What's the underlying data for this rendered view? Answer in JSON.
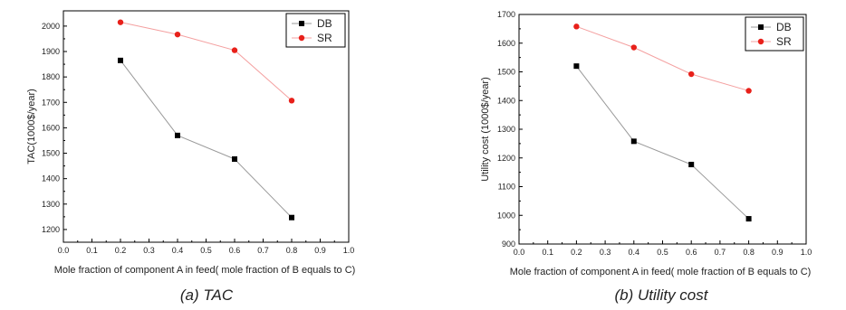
{
  "chart_data": [
    {
      "type": "line",
      "caption": "(a) TAC",
      "xlabel": "Mole fraction of component A in feed( mole fraction of B equals to C)",
      "ylabel": "TAC(1000$/year)",
      "xlim": [
        0.0,
        1.0
      ],
      "ylim": [
        1150,
        2060
      ],
      "xticks": [
        0.0,
        0.1,
        0.2,
        0.3,
        0.4,
        0.5,
        0.6,
        0.7,
        0.8,
        0.9,
        1.0
      ],
      "yticks": [
        1200,
        1300,
        1400,
        1500,
        1600,
        1700,
        1800,
        1900,
        2000
      ],
      "grid": false,
      "legend_position": "top-right",
      "x": [
        0.2,
        0.4,
        0.6,
        0.8
      ],
      "series": [
        {
          "name": "DB",
          "color": "#000000",
          "marker": "square",
          "values": [
            1865,
            1570,
            1477,
            1247
          ]
        },
        {
          "name": "SR",
          "color": "#e8201a",
          "marker": "circle",
          "values": [
            2015,
            1967,
            1905,
            1707
          ]
        }
      ]
    },
    {
      "type": "line",
      "caption": "(b) Utility cost",
      "xlabel": "Mole fraction of component A in feed( mole fraction of B equals to C)",
      "ylabel": "Utility cost (1000$/year)",
      "xlim": [
        0.0,
        1.0
      ],
      "ylim": [
        900,
        1700
      ],
      "xticks": [
        0.0,
        0.1,
        0.2,
        0.3,
        0.4,
        0.5,
        0.6,
        0.7,
        0.8,
        0.9,
        1.0
      ],
      "yticks": [
        900,
        1000,
        1100,
        1200,
        1300,
        1400,
        1500,
        1600,
        1700
      ],
      "grid": false,
      "legend_position": "top-right",
      "x": [
        0.2,
        0.4,
        0.6,
        0.8
      ],
      "series": [
        {
          "name": "DB",
          "color": "#000000",
          "marker": "square",
          "values": [
            1520,
            1258,
            1177,
            988
          ]
        },
        {
          "name": "SR",
          "color": "#e8201a",
          "marker": "circle",
          "values": [
            1658,
            1585,
            1492,
            1434
          ]
        }
      ]
    }
  ]
}
